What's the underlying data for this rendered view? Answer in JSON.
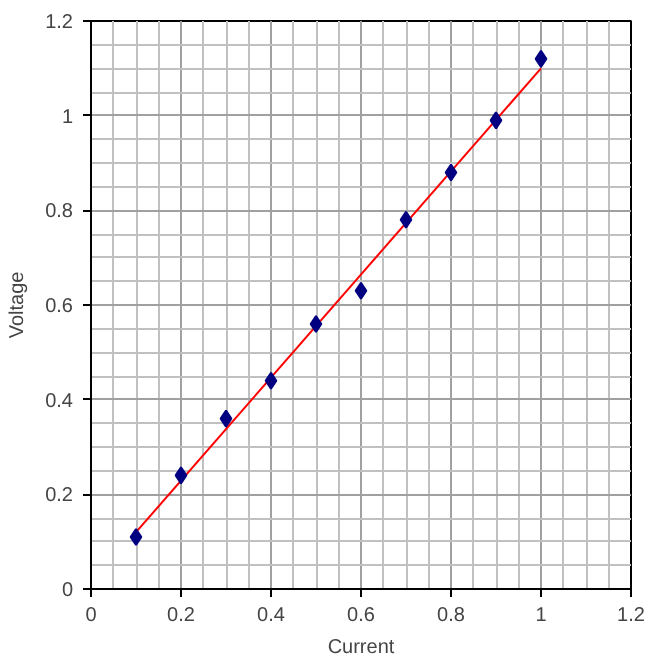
{
  "chart_data": {
    "type": "scatter",
    "xlabel": "Current",
    "ylabel": "Voltage",
    "xlim": [
      0,
      1.2
    ],
    "ylim": [
      0,
      1.2
    ],
    "xticks": [
      0,
      0.2,
      0.4,
      0.6,
      0.8,
      1,
      1.2
    ],
    "yticks": [
      0,
      0.2,
      0.4,
      0.6,
      0.8,
      1,
      1.2
    ],
    "grid": true,
    "marker": "diamond",
    "series": [
      {
        "color": "#000080",
        "x": [
          0.1,
          0.2,
          0.3,
          0.4,
          0.5,
          0.6,
          0.7,
          0.8,
          0.9,
          1.0
        ],
        "values": [
          0.11,
          0.24,
          0.36,
          0.44,
          0.56,
          0.63,
          0.78,
          0.88,
          0.99,
          1.12
        ]
      },
      {
        "type": "line",
        "marker": "none",
        "color": "#ff0000",
        "x": [
          0.1,
          1.0
        ],
        "values": [
          0.12,
          1.1
        ]
      }
    ]
  }
}
